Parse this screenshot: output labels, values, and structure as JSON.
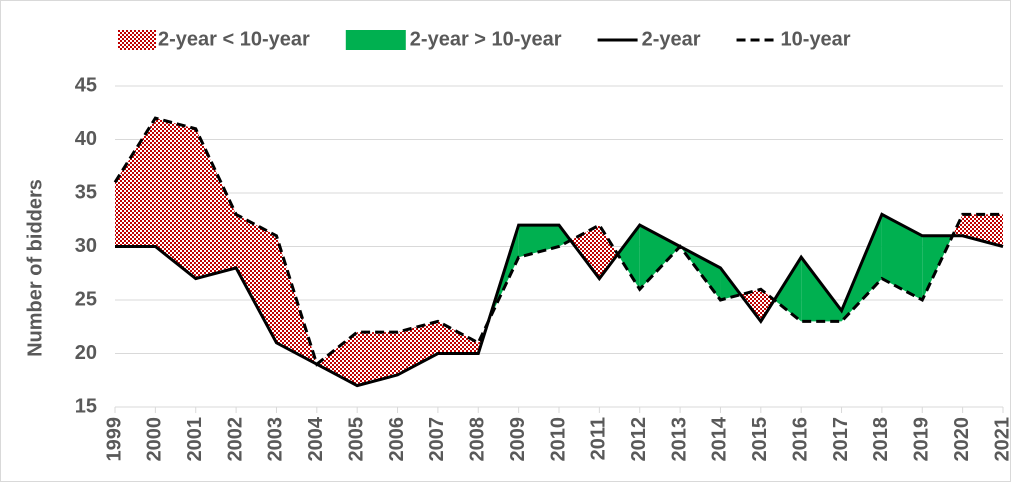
{
  "chart_data": {
    "type": "line",
    "categories": [
      "1999",
      "2000",
      "2001",
      "2002",
      "2003",
      "2004",
      "2005",
      "2006",
      "2007",
      "2008",
      "2009",
      "2010",
      "2011",
      "2012",
      "2013",
      "2014",
      "2015",
      "2016",
      "2017",
      "2018",
      "2019",
      "2020",
      "2021"
    ],
    "series": [
      {
        "name": "2-year",
        "color": "#000000",
        "dash": "solid",
        "values": [
          30,
          30,
          27,
          28,
          21,
          19,
          17,
          18,
          20,
          20,
          32,
          32,
          27,
          32,
          30,
          28,
          23,
          29,
          24,
          33,
          31,
          31,
          30
        ]
      },
      {
        "name": "10-year",
        "color": "#000000",
        "dash": "dashed",
        "values": [
          36,
          42,
          41,
          33,
          31,
          19,
          22,
          22,
          23,
          21,
          29,
          30,
          32,
          26,
          30,
          25,
          26,
          23,
          23,
          27,
          25,
          33,
          33
        ]
      }
    ],
    "areas": [
      {
        "name": "2-year < 10-year",
        "color": "#c00000",
        "pattern": "dots"
      },
      {
        "name": "2-year > 10-year",
        "color": "#00b050",
        "pattern": "solid"
      }
    ],
    "y_label": "Number of bidders",
    "ylim": [
      15,
      45
    ],
    "yticks": [
      15,
      20,
      25,
      30,
      35,
      40,
      45
    ],
    "grid": true,
    "legend": "top"
  }
}
